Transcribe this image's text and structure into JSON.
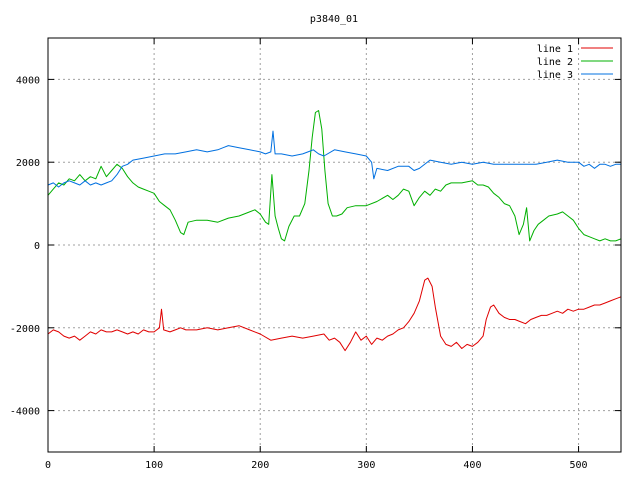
{
  "chart_data": {
    "type": "line",
    "title": "p3840_01",
    "xlabel": "",
    "ylabel": "",
    "xlim": [
      0,
      540
    ],
    "ylim": [
      -5000,
      5000
    ],
    "xticks": [
      0,
      100,
      200,
      300,
      400,
      500
    ],
    "yticks": [
      -4000,
      -2000,
      0,
      2000,
      4000
    ],
    "grid": true,
    "legend_position": "top-right",
    "series": [
      {
        "name": "line 1",
        "color": "#e00000",
        "points": [
          [
            0,
            -2150
          ],
          [
            5,
            -2050
          ],
          [
            10,
            -2100
          ],
          [
            15,
            -2200
          ],
          [
            20,
            -2250
          ],
          [
            25,
            -2200
          ],
          [
            30,
            -2300
          ],
          [
            35,
            -2200
          ],
          [
            40,
            -2100
          ],
          [
            45,
            -2150
          ],
          [
            50,
            -2050
          ],
          [
            55,
            -2100
          ],
          [
            60,
            -2100
          ],
          [
            65,
            -2050
          ],
          [
            70,
            -2100
          ],
          [
            75,
            -2150
          ],
          [
            80,
            -2100
          ],
          [
            85,
            -2150
          ],
          [
            90,
            -2050
          ],
          [
            95,
            -2100
          ],
          [
            100,
            -2100
          ],
          [
            105,
            -2000
          ],
          [
            107,
            -1550
          ],
          [
            109,
            -2050
          ],
          [
            115,
            -2100
          ],
          [
            120,
            -2050
          ],
          [
            125,
            -2000
          ],
          [
            130,
            -2050
          ],
          [
            140,
            -2050
          ],
          [
            150,
            -2000
          ],
          [
            160,
            -2050
          ],
          [
            170,
            -2000
          ],
          [
            180,
            -1950
          ],
          [
            190,
            -2050
          ],
          [
            200,
            -2150
          ],
          [
            210,
            -2300
          ],
          [
            220,
            -2250
          ],
          [
            230,
            -2200
          ],
          [
            240,
            -2250
          ],
          [
            250,
            -2200
          ],
          [
            260,
            -2150
          ],
          [
            265,
            -2300
          ],
          [
            270,
            -2250
          ],
          [
            275,
            -2350
          ],
          [
            280,
            -2550
          ],
          [
            285,
            -2350
          ],
          [
            290,
            -2100
          ],
          [
            295,
            -2300
          ],
          [
            300,
            -2200
          ],
          [
            305,
            -2400
          ],
          [
            310,
            -2250
          ],
          [
            315,
            -2300
          ],
          [
            320,
            -2200
          ],
          [
            325,
            -2150
          ],
          [
            330,
            -2050
          ],
          [
            335,
            -2000
          ],
          [
            340,
            -1850
          ],
          [
            345,
            -1650
          ],
          [
            350,
            -1350
          ],
          [
            355,
            -850
          ],
          [
            358,
            -800
          ],
          [
            362,
            -1000
          ],
          [
            365,
            -1500
          ],
          [
            370,
            -2200
          ],
          [
            375,
            -2400
          ],
          [
            380,
            -2450
          ],
          [
            385,
            -2350
          ],
          [
            390,
            -2500
          ],
          [
            395,
            -2400
          ],
          [
            400,
            -2450
          ],
          [
            405,
            -2350
          ],
          [
            410,
            -2200
          ],
          [
            413,
            -1800
          ],
          [
            417,
            -1500
          ],
          [
            420,
            -1450
          ],
          [
            425,
            -1650
          ],
          [
            430,
            -1750
          ],
          [
            435,
            -1800
          ],
          [
            440,
            -1800
          ],
          [
            445,
            -1850
          ],
          [
            450,
            -1900
          ],
          [
            455,
            -1800
          ],
          [
            460,
            -1750
          ],
          [
            465,
            -1700
          ],
          [
            470,
            -1700
          ],
          [
            475,
            -1650
          ],
          [
            480,
            -1600
          ],
          [
            485,
            -1650
          ],
          [
            490,
            -1550
          ],
          [
            495,
            -1600
          ],
          [
            500,
            -1550
          ],
          [
            505,
            -1550
          ],
          [
            510,
            -1500
          ],
          [
            515,
            -1450
          ],
          [
            520,
            -1450
          ],
          [
            525,
            -1400
          ],
          [
            530,
            -1350
          ],
          [
            535,
            -1300
          ],
          [
            540,
            -1250
          ]
        ]
      },
      {
        "name": "line 2",
        "color": "#00b000",
        "points": [
          [
            0,
            1200
          ],
          [
            5,
            1350
          ],
          [
            10,
            1500
          ],
          [
            15,
            1450
          ],
          [
            20,
            1600
          ],
          [
            25,
            1550
          ],
          [
            30,
            1700
          ],
          [
            35,
            1550
          ],
          [
            40,
            1650
          ],
          [
            45,
            1600
          ],
          [
            50,
            1900
          ],
          [
            55,
            1650
          ],
          [
            60,
            1800
          ],
          [
            65,
            1950
          ],
          [
            70,
            1850
          ],
          [
            75,
            1650
          ],
          [
            80,
            1500
          ],
          [
            85,
            1400
          ],
          [
            90,
            1350
          ],
          [
            95,
            1300
          ],
          [
            100,
            1250
          ],
          [
            105,
            1050
          ],
          [
            110,
            950
          ],
          [
            115,
            850
          ],
          [
            120,
            600
          ],
          [
            125,
            300
          ],
          [
            128,
            250
          ],
          [
            132,
            550
          ],
          [
            140,
            600
          ],
          [
            150,
            600
          ],
          [
            160,
            550
          ],
          [
            170,
            650
          ],
          [
            180,
            700
          ],
          [
            190,
            800
          ],
          [
            195,
            850
          ],
          [
            200,
            750
          ],
          [
            205,
            550
          ],
          [
            208,
            500
          ],
          [
            211,
            1700
          ],
          [
            214,
            700
          ],
          [
            217,
            400
          ],
          [
            220,
            150
          ],
          [
            223,
            100
          ],
          [
            227,
            450
          ],
          [
            232,
            700
          ],
          [
            237,
            700
          ],
          [
            242,
            1000
          ],
          [
            246,
            1800
          ],
          [
            249,
            2600
          ],
          [
            252,
            3200
          ],
          [
            255,
            3250
          ],
          [
            258,
            2800
          ],
          [
            261,
            1800
          ],
          [
            264,
            1000
          ],
          [
            268,
            700
          ],
          [
            272,
            700
          ],
          [
            277,
            750
          ],
          [
            282,
            900
          ],
          [
            290,
            950
          ],
          [
            300,
            950
          ],
          [
            310,
            1050
          ],
          [
            320,
            1200
          ],
          [
            325,
            1100
          ],
          [
            330,
            1200
          ],
          [
            335,
            1350
          ],
          [
            340,
            1300
          ],
          [
            345,
            950
          ],
          [
            350,
            1150
          ],
          [
            355,
            1300
          ],
          [
            360,
            1200
          ],
          [
            365,
            1350
          ],
          [
            370,
            1300
          ],
          [
            375,
            1450
          ],
          [
            380,
            1500
          ],
          [
            390,
            1500
          ],
          [
            400,
            1550
          ],
          [
            405,
            1450
          ],
          [
            410,
            1450
          ],
          [
            415,
            1400
          ],
          [
            420,
            1250
          ],
          [
            425,
            1150
          ],
          [
            430,
            1000
          ],
          [
            435,
            950
          ],
          [
            440,
            700
          ],
          [
            444,
            250
          ],
          [
            448,
            500
          ],
          [
            451,
            900
          ],
          [
            454,
            100
          ],
          [
            458,
            350
          ],
          [
            462,
            500
          ],
          [
            467,
            600
          ],
          [
            472,
            700
          ],
          [
            480,
            750
          ],
          [
            485,
            800
          ],
          [
            490,
            700
          ],
          [
            495,
            600
          ],
          [
            500,
            400
          ],
          [
            505,
            250
          ],
          [
            510,
            200
          ],
          [
            515,
            150
          ],
          [
            520,
            100
          ],
          [
            525,
            150
          ],
          [
            530,
            100
          ],
          [
            535,
            100
          ],
          [
            540,
            150
          ]
        ]
      },
      {
        "name": "line 3",
        "color": "#0070e0",
        "points": [
          [
            0,
            1450
          ],
          [
            5,
            1500
          ],
          [
            10,
            1400
          ],
          [
            15,
            1500
          ],
          [
            20,
            1550
          ],
          [
            25,
            1500
          ],
          [
            30,
            1450
          ],
          [
            35,
            1550
          ],
          [
            40,
            1450
          ],
          [
            45,
            1500
          ],
          [
            50,
            1450
          ],
          [
            55,
            1500
          ],
          [
            60,
            1550
          ],
          [
            65,
            1700
          ],
          [
            70,
            1900
          ],
          [
            75,
            1950
          ],
          [
            80,
            2050
          ],
          [
            90,
            2100
          ],
          [
            100,
            2150
          ],
          [
            110,
            2200
          ],
          [
            120,
            2200
          ],
          [
            130,
            2250
          ],
          [
            140,
            2300
          ],
          [
            150,
            2250
          ],
          [
            160,
            2300
          ],
          [
            165,
            2350
          ],
          [
            170,
            2400
          ],
          [
            180,
            2350
          ],
          [
            190,
            2300
          ],
          [
            200,
            2250
          ],
          [
            205,
            2200
          ],
          [
            210,
            2250
          ],
          [
            212,
            2750
          ],
          [
            214,
            2200
          ],
          [
            220,
            2200
          ],
          [
            230,
            2150
          ],
          [
            240,
            2200
          ],
          [
            245,
            2250
          ],
          [
            250,
            2300
          ],
          [
            255,
            2200
          ],
          [
            260,
            2150
          ],
          [
            270,
            2300
          ],
          [
            280,
            2250
          ],
          [
            290,
            2200
          ],
          [
            300,
            2150
          ],
          [
            305,
            2000
          ],
          [
            307,
            1600
          ],
          [
            310,
            1850
          ],
          [
            320,
            1800
          ],
          [
            330,
            1900
          ],
          [
            340,
            1900
          ],
          [
            345,
            1800
          ],
          [
            350,
            1850
          ],
          [
            360,
            2050
          ],
          [
            370,
            2000
          ],
          [
            380,
            1950
          ],
          [
            390,
            2000
          ],
          [
            400,
            1950
          ],
          [
            410,
            2000
          ],
          [
            420,
            1950
          ],
          [
            430,
            1950
          ],
          [
            440,
            1950
          ],
          [
            450,
            1950
          ],
          [
            460,
            1950
          ],
          [
            470,
            2000
          ],
          [
            480,
            2050
          ],
          [
            490,
            2000
          ],
          [
            500,
            2000
          ],
          [
            505,
            1900
          ],
          [
            510,
            1950
          ],
          [
            515,
            1850
          ],
          [
            520,
            1950
          ],
          [
            525,
            1950
          ],
          [
            530,
            1900
          ],
          [
            535,
            1950
          ],
          [
            540,
            1950
          ]
        ]
      }
    ]
  }
}
